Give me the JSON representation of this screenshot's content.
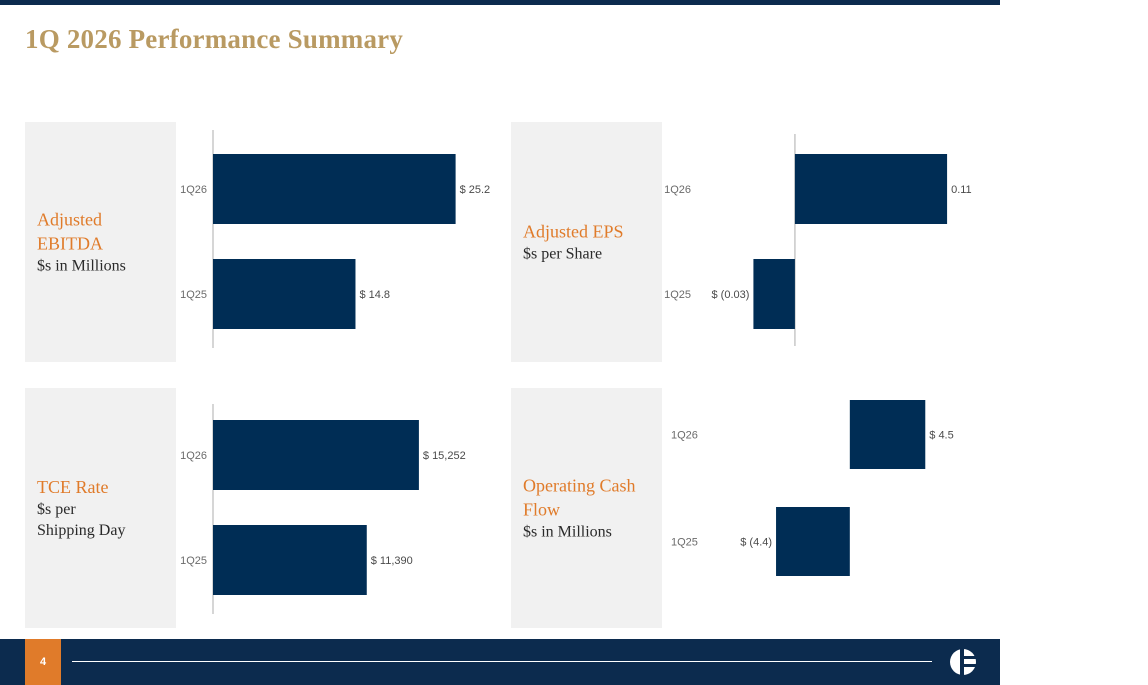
{
  "page": {
    "title": "1Q 2026 Performance Summary",
    "page_number": "4",
    "colors": {
      "navy": "#0c2b4e",
      "bar": "#002d55",
      "bar_alt": "#0e3b64",
      "accent": "#e07b2a",
      "title": "#b99a62"
    }
  },
  "panels": {
    "ebitda": {
      "title": "Adjusted EBITDA",
      "unit": "$s in Millions"
    },
    "eps": {
      "title": "Adjusted EPS",
      "unit": "$s per Share"
    },
    "tce": {
      "title": "TCE Rate",
      "unit": "$s per\nShipping Day"
    },
    "ocf": {
      "title": "Operating Cash\nFlow",
      "unit": "$s in Millions"
    }
  },
  "chart_data": [
    {
      "id": "ebitda",
      "type": "bar",
      "orientation": "horizontal",
      "categories": [
        "1Q26",
        "1Q25"
      ],
      "values": [
        25.2,
        14.8
      ],
      "data_labels": [
        "$ 25.2",
        "$ 14.8"
      ],
      "xlim": [
        0,
        29.5
      ]
    },
    {
      "id": "eps",
      "type": "bar",
      "orientation": "horizontal",
      "categories": [
        "1Q26",
        "1Q25"
      ],
      "values": [
        0.11,
        -0.03
      ],
      "data_labels": [
        "0.11",
        "$ (0.03)"
      ],
      "xlim": [
        -0.065,
        0.115
      ]
    },
    {
      "id": "tce",
      "type": "bar",
      "orientation": "horizontal",
      "categories": [
        "1Q26",
        "1Q25"
      ],
      "values": [
        15252,
        11390
      ],
      "data_labels": [
        "$ 15,252",
        "$ 11,390"
      ],
      "xlim": [
        0,
        20000
      ]
    },
    {
      "id": "ocf",
      "type": "bar",
      "orientation": "horizontal",
      "categories": [
        "1Q26",
        "1Q25"
      ],
      "values": [
        4.5,
        -4.4
      ],
      "data_labels": [
        "$ 4.5",
        "$ (4.4)"
      ],
      "xlim": [
        -8.1,
        8.3
      ],
      "axis_visible": false
    }
  ]
}
